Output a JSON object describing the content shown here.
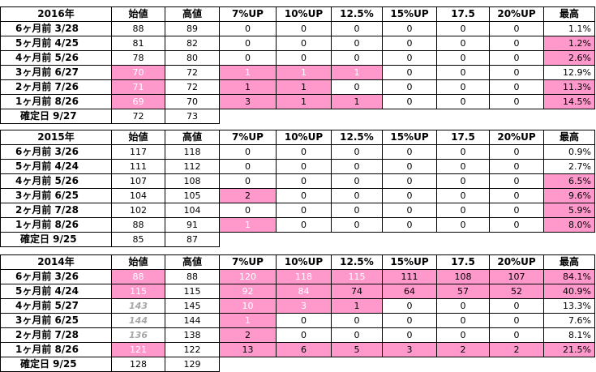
{
  "columns": [
    "始値",
    "高値",
    "7%UP",
    "10%UP",
    "12.5%",
    "15%UP",
    "17.5",
    "20%UP",
    "最高"
  ],
  "blocks": [
    {
      "year": "2016年",
      "rows": [
        {
          "label": "6ヶ月前  3/28",
          "vals": [
            "88",
            "89",
            "0",
            "0",
            "0",
            "0",
            "0",
            "0",
            "1.1%"
          ]
        },
        {
          "label": "5ヶ月前  4/25",
          "vals": [
            "81",
            "82",
            "0",
            "0",
            "0",
            "0",
            "0",
            "0",
            "1.2%"
          ]
        },
        {
          "label": "4ヶ月前  5/26",
          "vals": [
            "78",
            "80",
            "0",
            "0",
            "0",
            "0",
            "0",
            "0",
            "2.6%"
          ]
        },
        {
          "label": "3ヶ月前  6/27",
          "vals": [
            "70",
            "72",
            "1",
            "1",
            "1",
            "0",
            "0",
            "0",
            "12.9%"
          ]
        },
        {
          "label": "2ヶ月前  7/26",
          "vals": [
            "71",
            "72",
            "1",
            "1",
            "0",
            "0",
            "0",
            "0",
            "11.3%"
          ]
        },
        {
          "label": "1ヶ月前  8/26",
          "vals": [
            "69",
            "70",
            "3",
            "1",
            "1",
            "0",
            "0",
            "0",
            "14.5%"
          ]
        }
      ],
      "confirm": {
        "label": "確定日  9/27",
        "vals": [
          "72",
          "73"
        ]
      }
    },
    {
      "year": "2015年",
      "rows": [
        {
          "label": "6ヶ月前  3/26",
          "vals": [
            "117",
            "118",
            "0",
            "0",
            "0",
            "0",
            "0",
            "0",
            "0.9%"
          ]
        },
        {
          "label": "5ヶ月前  4/24",
          "vals": [
            "111",
            "112",
            "0",
            "0",
            "0",
            "0",
            "0",
            "0",
            "2.7%"
          ]
        },
        {
          "label": "4ヶ月前  5/26",
          "vals": [
            "107",
            "108",
            "0",
            "0",
            "0",
            "0",
            "0",
            "0",
            "6.5%"
          ]
        },
        {
          "label": "3ヶ月前  6/25",
          "vals": [
            "104",
            "105",
            "2",
            "0",
            "0",
            "0",
            "0",
            "0",
            "9.6%"
          ]
        },
        {
          "label": "2ヶ月前  7/28",
          "vals": [
            "102",
            "104",
            "0",
            "0",
            "0",
            "0",
            "0",
            "0",
            "5.9%"
          ]
        },
        {
          "label": "1ヶ月前  8/26",
          "vals": [
            "88",
            "91",
            "1",
            "0",
            "0",
            "0",
            "0",
            "0",
            "8.0%"
          ]
        }
      ],
      "confirm": {
        "label": "確定日  9/25",
        "vals": [
          "85",
          "87"
        ]
      }
    },
    {
      "year": "2014年",
      "rows": [
        {
          "label": "6ヶ月前  3/26",
          "vals": [
            "88",
            "88",
            "120",
            "118",
            "115",
            "111",
            "108",
            "107",
            "84.1%"
          ]
        },
        {
          "label": "5ヶ月前  4/24",
          "vals": [
            "115",
            "115",
            "92",
            "84",
            "74",
            "64",
            "57",
            "52",
            "40.9%"
          ]
        },
        {
          "label": "4ヶ月前  5/27",
          "vals": [
            "143",
            "145",
            "10",
            "3",
            "1",
            "0",
            "0",
            "0",
            "13.3%"
          ]
        },
        {
          "label": "3ヶ月前  6/25",
          "vals": [
            "144",
            "144",
            "1",
            "0",
            "0",
            "0",
            "0",
            "0",
            "7.6%"
          ]
        },
        {
          "label": "2ヶ月前  7/28",
          "vals": [
            "136",
            "138",
            "2",
            "0",
            "0",
            "0",
            "0",
            "0",
            "8.1%"
          ]
        },
        {
          "label": "1ヶ月前  8/26",
          "vals": [
            "121",
            "122",
            "13",
            "6",
            "5",
            "3",
            "2",
            "2",
            "21.5%"
          ]
        }
      ],
      "confirm": {
        "label": "確定日  9/25",
        "vals": [
          "128",
          "129"
        ]
      }
    }
  ],
  "highlight_color": "#ff99cc"
}
